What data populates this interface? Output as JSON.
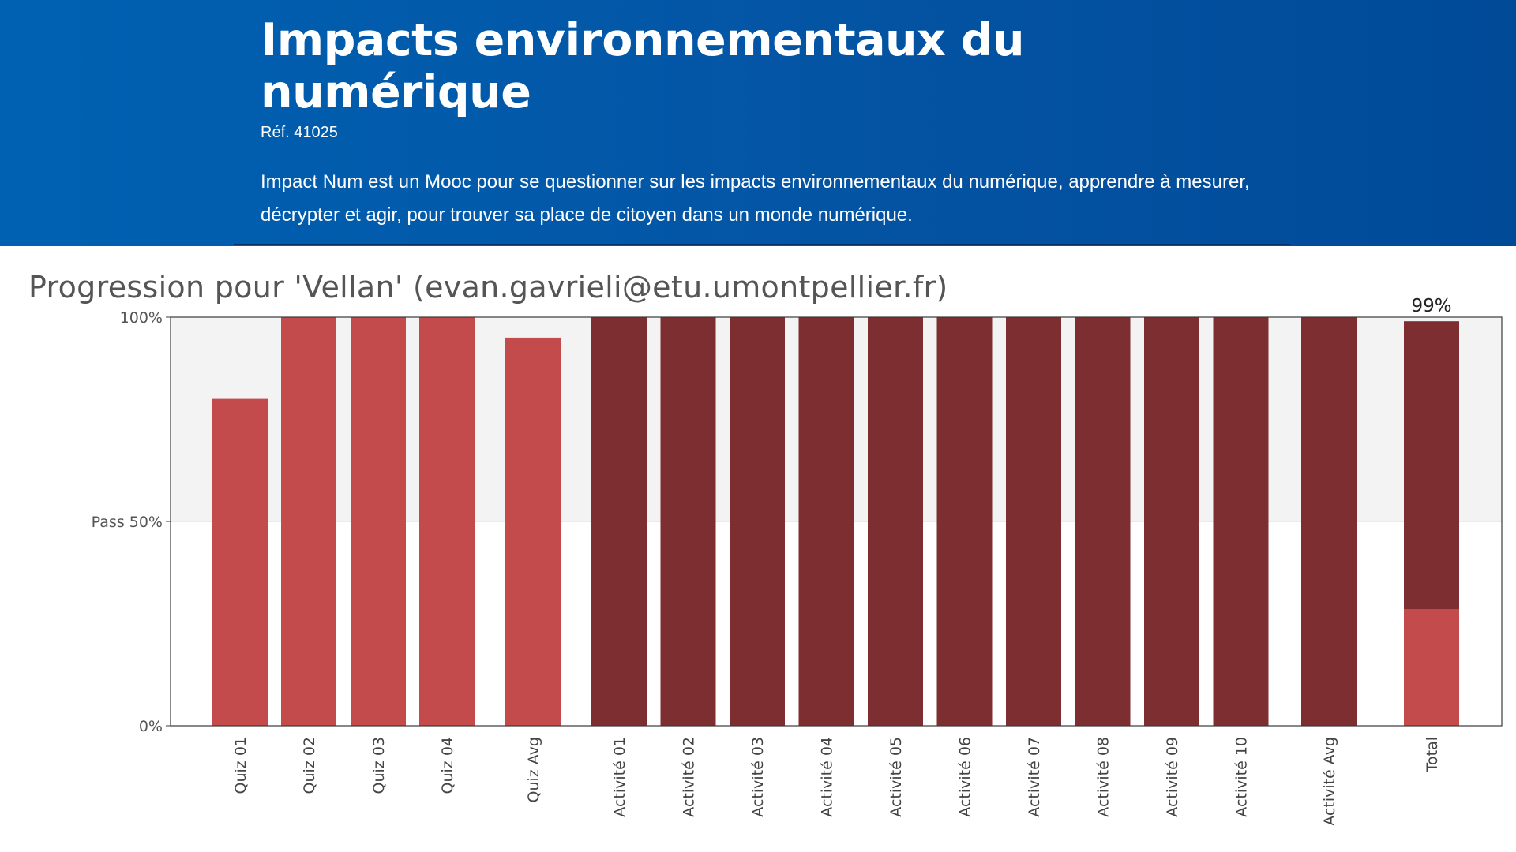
{
  "header": {
    "title": "Impacts environnementaux du numérique",
    "ref": "Réf. 41025",
    "description": "Impact Num est un Mooc pour se questionner sur les impacts environnementaux du numérique, apprendre à mesurer, décrypter et agir, pour trouver sa place de citoyen dans un monde numérique."
  },
  "colors": {
    "header_bg": "#0454a4",
    "quiz_bar": "#c44b4c",
    "activity_bar": "#7d2e30",
    "pass_region": "#f4f3f3"
  },
  "chart_data": {
    "type": "bar",
    "title": "Progression pour 'Vellan' (evan.gavrieli@etu.umontpellier.fr)",
    "xlabel": "",
    "ylabel": "",
    "ylim": [
      0,
      100
    ],
    "grid": true,
    "yticks": [
      {
        "value": 0,
        "label": "0%"
      },
      {
        "value": 50,
        "label": "Pass 50%"
      },
      {
        "value": 100,
        "label": "100%"
      }
    ],
    "pass_threshold": 50,
    "categories": [
      "Quiz 01",
      "Quiz 02",
      "Quiz 03",
      "Quiz 04",
      "Quiz Avg",
      "Activité 01",
      "Activité 02",
      "Activité 03",
      "Activité 04",
      "Activité 05",
      "Activité 06",
      "Activité 07",
      "Activité 08",
      "Activité 09",
      "Activité 10",
      "Activité Avg",
      "Total"
    ],
    "bars": [
      {
        "category": "Quiz 01",
        "group": "quiz",
        "value": 80
      },
      {
        "category": "Quiz 02",
        "group": "quiz",
        "value": 100
      },
      {
        "category": "Quiz 03",
        "group": "quiz",
        "value": 100
      },
      {
        "category": "Quiz 04",
        "group": "quiz",
        "value": 100
      },
      {
        "category": "Quiz Avg",
        "group": "quiz",
        "value": 95
      },
      {
        "category": "Activité 01",
        "group": "activity",
        "value": 100
      },
      {
        "category": "Activité 02",
        "group": "activity",
        "value": 100
      },
      {
        "category": "Activité 03",
        "group": "activity",
        "value": 100
      },
      {
        "category": "Activité 04",
        "group": "activity",
        "value": 100
      },
      {
        "category": "Activité 05",
        "group": "activity",
        "value": 100
      },
      {
        "category": "Activité 06",
        "group": "activity",
        "value": 100
      },
      {
        "category": "Activité 07",
        "group": "activity",
        "value": 100
      },
      {
        "category": "Activité 08",
        "group": "activity",
        "value": 100
      },
      {
        "category": "Activité 09",
        "group": "activity",
        "value": 100
      },
      {
        "category": "Activité 10",
        "group": "activity",
        "value": 100
      },
      {
        "category": "Activité Avg",
        "group": "activity",
        "value": 100
      },
      {
        "category": "Total",
        "group": "total",
        "quiz_part": 28.5,
        "activity_part": 70.5,
        "value": 99,
        "label": "99%"
      }
    ]
  }
}
